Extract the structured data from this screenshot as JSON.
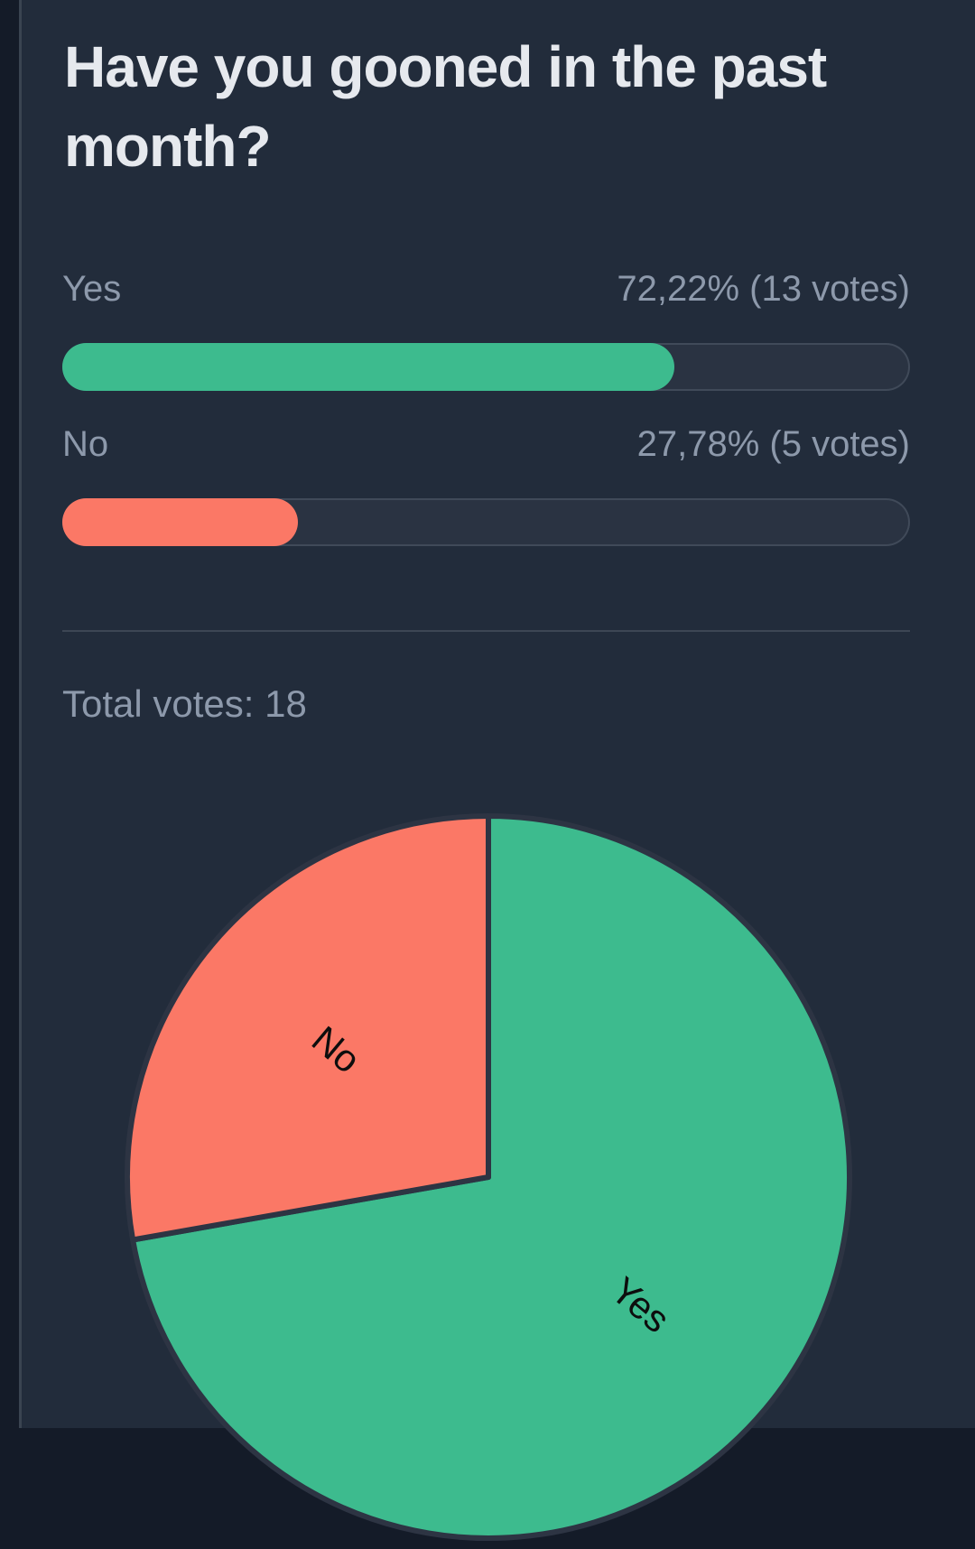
{
  "poll": {
    "question": "Have you gooned in the past month?",
    "options": [
      {
        "label": "Yes",
        "value_text": "72,22% (13 votes)",
        "percent": 72.22,
        "votes": 13,
        "color": "#3dbb8e"
      },
      {
        "label": "No",
        "value_text": "27,78% (5 votes)",
        "percent": 27.78,
        "votes": 5,
        "color": "#fb7866"
      }
    ],
    "total_votes_label": "Total votes: 18",
    "total_votes": 18
  },
  "chart_data": {
    "type": "pie",
    "categories": [
      "Yes",
      "No"
    ],
    "values": [
      13,
      5
    ],
    "percents": [
      72.22,
      27.78
    ],
    "colors": [
      "#3dbb8e",
      "#fb7866"
    ],
    "start_angle_deg": 0,
    "direction": "clockwise",
    "labels": "inside-radial",
    "label_color": "#0d0d0d",
    "stroke_color": "#2d3443",
    "legend": "none",
    "title": ""
  },
  "theme": {
    "page_background": "#141b28",
    "content_background": "#222c3b",
    "edge_border": "#3a4451",
    "bar_track": "#2a3342",
    "bar_track_border": "#404a59",
    "divider": "#3d4654",
    "title_text": "#e6e9ee",
    "label_text": "#8d99ab",
    "green": "#3dbb8e",
    "salmon": "#fb7866"
  }
}
